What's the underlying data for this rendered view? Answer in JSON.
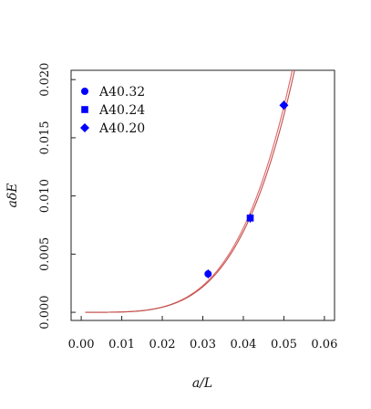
{
  "chart_data": {
    "type": "scatter",
    "xlabel": "a/L",
    "ylabel": "aδE",
    "xlim": [
      -0.0025,
      0.0625
    ],
    "ylim": [
      -0.0007,
      0.0208
    ],
    "xticks": [
      0.0,
      0.01,
      0.02,
      0.03,
      0.04,
      0.05,
      0.06
    ],
    "xtick_labels": [
      "0.00",
      "0.01",
      "0.02",
      "0.03",
      "0.04",
      "0.05",
      "0.06"
    ],
    "yticks": [
      0.0,
      0.005,
      0.01,
      0.015,
      0.02
    ],
    "ytick_labels": [
      "0.000",
      "0.005",
      "0.010",
      "0.015",
      "0.020"
    ],
    "grid": false,
    "legend_position": "top-left",
    "series": [
      {
        "name": "A40.32",
        "marker": "circle",
        "color": "#0000ff",
        "points": [
          {
            "x": 0.0313,
            "y": 0.0033
          }
        ]
      },
      {
        "name": "A40.24",
        "marker": "square",
        "color": "#0000ff",
        "points": [
          {
            "x": 0.0417,
            "y": 0.0081
          }
        ]
      },
      {
        "name": "A40.20",
        "marker": "diamond",
        "color": "#0000ff",
        "points": [
          {
            "x": 0.05,
            "y": 0.0178
          }
        ]
      }
    ],
    "fit_curves": [
      {
        "form": "c*x^4",
        "coefficient": 2830,
        "color": "#e06666",
        "x_start": 0.001
      },
      {
        "form": "c*x^4",
        "coefficient": 2710,
        "color": "#c0504d",
        "x_start": 0.001
      }
    ]
  }
}
